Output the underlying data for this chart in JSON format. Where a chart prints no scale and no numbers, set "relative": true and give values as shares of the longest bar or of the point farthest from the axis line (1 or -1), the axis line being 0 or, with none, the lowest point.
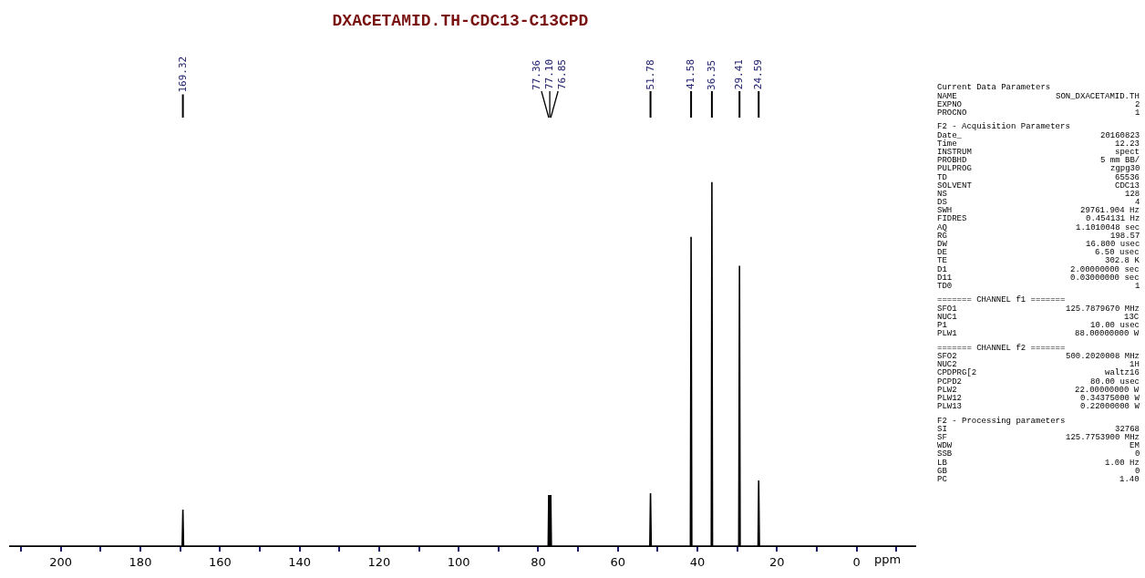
{
  "chart_data": {
    "type": "line",
    "title": "DXACETAMID.TH-CDC13-C13CPD",
    "xlabel": "ppm",
    "relative": true,
    "xlim": [
      213,
      -15
    ],
    "xticks": [
      {
        "value": 210,
        "label": null
      },
      200,
      {
        "value": 190,
        "label": null
      },
      180,
      {
        "value": 170,
        "label": null
      },
      160,
      {
        "value": 150,
        "label": null
      },
      140,
      {
        "value": 130,
        "label": null
      },
      120,
      {
        "value": 110,
        "label": null
      },
      100,
      {
        "value": 90,
        "label": null
      },
      80,
      {
        "value": 70,
        "label": null
      },
      60,
      {
        "value": 50,
        "label": null
      },
      40,
      {
        "value": 30,
        "label": null
      },
      20,
      {
        "value": 10,
        "label": null
      },
      0,
      {
        "value": -10,
        "label": null
      }
    ],
    "x": [
      213,
      169.5,
      169.32,
      169.15,
      77.5,
      77.36,
      77.23,
      77.1,
      76.97,
      76.85,
      76.7,
      51.95,
      51.78,
      51.6,
      41.75,
      41.58,
      41.4,
      36.5,
      36.35,
      36.2,
      29.6,
      29.41,
      29.25,
      24.75,
      24.59,
      24.4,
      -15
    ],
    "series": [
      {
        "color": "#000000",
        "values": [
          0,
          0,
          0.1,
          0,
          0,
          0.14,
          0,
          0.14,
          0,
          0.14,
          0,
          0,
          0.145,
          0,
          0,
          0.85,
          0,
          0,
          1,
          0,
          0,
          0.77,
          0,
          0,
          0.18,
          0,
          0
        ]
      }
    ],
    "annotations": [
      {
        "text": "169.32",
        "x": 169.32
      },
      {
        "text": "77.36",
        "x": 77.36
      },
      {
        "text": "77.10",
        "x": 77.1
      },
      {
        "text": "76.85",
        "x": 76.85
      },
      {
        "text": "51.78",
        "x": 51.78
      },
      {
        "text": "41.58",
        "x": 41.58
      },
      {
        "text": "36.35",
        "x": 36.35
      },
      {
        "text": "29.41",
        "x": 29.41
      },
      {
        "text": "24.59",
        "x": 24.59
      },
      "Current Data Parameters",
      "NAME  SON_DXACETAMID.TH",
      "EXPNO  2",
      "PROCNO  1",
      "F2 - Acquisition Parameters",
      "Date_  20160823",
      "Time  12.23",
      "INSTRUM  spect",
      "PROBHD  5 mm BB/",
      "PULPROG  zgpg30",
      "TD  65536",
      "SOLVENT  CDC13",
      "NS  128",
      "DS  4",
      "SWH  29761.904 Hz",
      "FIDRES  0.454131 Hz",
      "AQ  1.1010048 sec",
      "RG  198.57",
      "DW  16.800 usec",
      "DE  6.50 usec",
      "TE  302.8 K",
      "D1  2.00000000 sec",
      "D11  0.03000000 sec",
      "TD0  1",
      "======= CHANNEL f1 =======",
      "SFO1  125.7879670 MHz",
      "NUC1  13C",
      "P1  10.00 usec",
      "PLW1  88.00000000 W",
      "======= CHANNEL f2 =======",
      "SFO2  500.2020008 MHz",
      "NUC2  1H",
      "CPDPRG[2  waltz16",
      "PCPD2  80.00 usec",
      "PLW2  22.00000000 W",
      "PLW12  0.34375000 W",
      "PLW13  0.22000000 W",
      "F2 - Processing parameters",
      "SI  32768",
      "SF  125.7753900 MHz",
      "WDW  EM",
      "SSB  0",
      "LB  1.00 Hz",
      "GB  0",
      "PC  1.40"
    ]
  }
}
